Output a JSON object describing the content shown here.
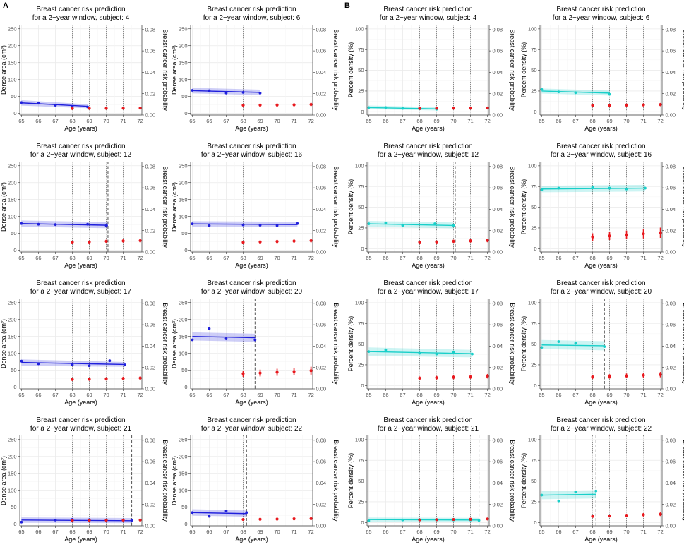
{
  "panel_letters": {
    "a": "A",
    "b": "B"
  },
  "chart_data": {
    "type": "small-multiples (line with confidence band + point-range)",
    "title_line1": "Breast cancer risk prediction",
    "title_line2_prefix": "for a 2−year window, subject: ",
    "xlabel": "Age (years)",
    "xticks": [
      65,
      66,
      67,
      68,
      69,
      70,
      71,
      72
    ],
    "xlim": [
      64.9,
      72.1
    ],
    "right_ylabel": "Breast cancer risk probability",
    "right_ylim": [
      0,
      0.0845
    ],
    "right_yticks": [
      0.0,
      0.02,
      0.04,
      0.06,
      0.08
    ],
    "right_tick_labels": [
      "0.00",
      "0.02",
      "0.04",
      "0.06",
      "0.08"
    ],
    "dotted_vlines": [
      68,
      69,
      70,
      71
    ],
    "colors": {
      "A": "#1f1fdc",
      "B": "#19cfc9",
      "risk": "#e8191e",
      "vline": "#6e6e6e"
    },
    "groups": {
      "A": {
        "ylabel": "Dense area (cm²)",
        "ylim": [
          -5,
          262
        ],
        "yticks": [
          0,
          50,
          100,
          150,
          200,
          250
        ]
      },
      "B": {
        "ylabel": "Percent density (%)",
        "ylim": [
          -4,
          105
        ],
        "yticks": [
          0,
          25,
          50,
          75,
          100
        ]
      }
    },
    "panels": [
      {
        "group": "A",
        "subject": "4",
        "obs": [
          [
            65,
            32
          ],
          [
            66,
            30
          ],
          [
            67,
            24
          ],
          [
            68,
            20
          ],
          [
            68.9,
            19
          ]
        ],
        "fit": [
          [
            65,
            31,
            23,
            39
          ],
          [
            68.9,
            21,
            15,
            27
          ]
        ],
        "dashed": null,
        "risk": [
          [
            68,
            0.0062,
            0.0012
          ],
          [
            69,
            0.0063,
            0.0012
          ],
          [
            70,
            0.0063,
            0.0012
          ],
          [
            71,
            0.0064,
            0.0012
          ],
          [
            72,
            0.0065,
            0.0013
          ]
        ]
      },
      {
        "group": "A",
        "subject": "6",
        "obs": [
          [
            65,
            68
          ],
          [
            66,
            67
          ],
          [
            67,
            60
          ],
          [
            68,
            62
          ],
          [
            69,
            60
          ]
        ],
        "fit": [
          [
            65,
            67,
            59,
            76
          ],
          [
            69,
            62,
            54,
            70
          ]
        ],
        "dashed": null,
        "risk": [
          [
            68,
            0.0092,
            0.0013
          ],
          [
            69,
            0.0093,
            0.0013
          ],
          [
            70,
            0.0094,
            0.0014
          ],
          [
            71,
            0.0096,
            0.0014
          ],
          [
            72,
            0.0099,
            0.0015
          ]
        ]
      },
      {
        "group": "A",
        "subject": "12",
        "obs": [
          [
            65,
            79
          ],
          [
            66,
            77
          ],
          [
            67,
            76
          ],
          [
            68.9,
            77
          ],
          [
            70,
            73
          ]
        ],
        "fit": [
          [
            65,
            79,
            70,
            88
          ],
          [
            70.1,
            74,
            65,
            83
          ]
        ],
        "dashed": 70.1,
        "risk": [
          [
            68,
            0.0092,
            0.0013
          ],
          [
            69,
            0.0093,
            0.0013
          ],
          [
            70,
            0.01,
            0.0014
          ],
          [
            71,
            0.0103,
            0.0015
          ],
          [
            72,
            0.0106,
            0.0016
          ]
        ]
      },
      {
        "group": "A",
        "subject": "16",
        "obs": [
          [
            65,
            78
          ],
          [
            66,
            73
          ],
          [
            68,
            75
          ],
          [
            69,
            74
          ],
          [
            70,
            73
          ],
          [
            71.2,
            79
          ]
        ],
        "fit": [
          [
            65,
            78,
            70,
            86
          ],
          [
            71.2,
            76,
            68,
            84
          ]
        ],
        "dashed": null,
        "risk": [
          [
            68,
            0.009,
            0.0014
          ],
          [
            69,
            0.0094,
            0.0014
          ],
          [
            70,
            0.0098,
            0.0015
          ],
          [
            71,
            0.0102,
            0.0016
          ],
          [
            72,
            0.0106,
            0.0017
          ]
        ]
      },
      {
        "group": "A",
        "subject": "17",
        "obs": [
          [
            65,
            77
          ],
          [
            66,
            69
          ],
          [
            68,
            66
          ],
          [
            69,
            63
          ],
          [
            70.2,
            78
          ],
          [
            71.1,
            66
          ]
        ],
        "fit": [
          [
            65,
            73,
            63,
            82
          ],
          [
            71.1,
            67,
            60,
            74
          ]
        ],
        "dashed": null,
        "risk": [
          [
            68,
            0.0088,
            0.0014
          ],
          [
            69,
            0.009,
            0.0015
          ],
          [
            70,
            0.0093,
            0.0015
          ],
          [
            71,
            0.0097,
            0.0016
          ],
          [
            72,
            0.0101,
            0.0017
          ]
        ]
      },
      {
        "group": "A",
        "subject": "20",
        "obs": [
          [
            65,
            140
          ],
          [
            66,
            173
          ],
          [
            67,
            143
          ],
          [
            68.7,
            140
          ]
        ],
        "fit": [
          [
            65,
            150,
            138,
            162
          ],
          [
            68.7,
            146,
            134,
            158
          ]
        ],
        "dashed": 68.7,
        "risk": [
          [
            68,
            0.0142,
            0.003
          ],
          [
            69,
            0.0148,
            0.0032
          ],
          [
            70,
            0.0155,
            0.0033
          ],
          [
            71,
            0.0162,
            0.0035
          ],
          [
            72,
            0.017,
            0.0037
          ]
        ]
      },
      {
        "group": "A",
        "subject": "21",
        "obs": [
          [
            65,
            6
          ],
          [
            67,
            12
          ],
          [
            68,
            14
          ],
          [
            69,
            13
          ],
          [
            70,
            12
          ],
          [
            71,
            12
          ],
          [
            71.5,
            11
          ]
        ],
        "fit": [
          [
            65,
            12,
            4,
            20
          ],
          [
            71.5,
            10,
            3,
            18
          ]
        ],
        "dashed": 71.5,
        "risk": [
          [
            68,
            0.005,
            0.001
          ],
          [
            69,
            0.0051,
            0.001
          ],
          [
            70,
            0.0052,
            0.0011
          ],
          [
            71,
            0.0053,
            0.0011
          ],
          [
            72,
            0.0054,
            0.0012
          ]
        ]
      },
      {
        "group": "A",
        "subject": "22",
        "obs": [
          [
            65,
            34
          ],
          [
            66,
            23
          ],
          [
            67,
            39
          ],
          [
            68.2,
            34
          ]
        ],
        "fit": [
          [
            65,
            34,
            25,
            44
          ],
          [
            68.2,
            31,
            22,
            40
          ]
        ],
        "dashed": 68.2,
        "risk": [
          [
            68,
            0.0059,
            0.001
          ],
          [
            69,
            0.0061,
            0.0011
          ],
          [
            70,
            0.0063,
            0.0011
          ],
          [
            71,
            0.0065,
            0.0012
          ],
          [
            72,
            0.0067,
            0.0012
          ]
        ]
      },
      {
        "group": "B",
        "subject": "4",
        "obs": [
          [
            65,
            5
          ],
          [
            66,
            5
          ],
          [
            67,
            4
          ],
          [
            68,
            3.5
          ],
          [
            69,
            3
          ]
        ],
        "fit": [
          [
            65,
            5,
            3,
            7.5
          ],
          [
            69,
            3.5,
            1.5,
            5.5
          ]
        ],
        "dashed": null,
        "risk": [
          [
            68,
            0.0062,
            0.0012
          ],
          [
            69,
            0.0063,
            0.0012
          ],
          [
            70,
            0.0064,
            0.0012
          ],
          [
            71,
            0.0065,
            0.0013
          ],
          [
            72,
            0.0066,
            0.0013
          ]
        ]
      },
      {
        "group": "B",
        "subject": "6",
        "obs": [
          [
            65,
            27
          ],
          [
            66,
            24
          ],
          [
            67,
            23
          ],
          [
            69,
            21
          ]
        ],
        "fit": [
          [
            65,
            25,
            22,
            28
          ],
          [
            69,
            22.5,
            19.5,
            25.5
          ]
        ],
        "dashed": null,
        "risk": [
          [
            68,
            0.009,
            0.0013
          ],
          [
            69,
            0.0091,
            0.0013
          ],
          [
            70,
            0.0093,
            0.0014
          ],
          [
            71,
            0.0095,
            0.0014
          ],
          [
            72,
            0.0098,
            0.0015
          ]
        ]
      },
      {
        "group": "B",
        "subject": "12",
        "obs": [
          [
            65,
            30
          ],
          [
            66,
            31
          ],
          [
            67,
            28
          ],
          [
            68.9,
            30
          ],
          [
            70,
            28
          ]
        ],
        "fit": [
          [
            65,
            30,
            26.5,
            33.5
          ],
          [
            70,
            28,
            24.5,
            31.5
          ]
        ],
        "dashed": 70.1,
        "risk": [
          [
            68,
            0.0092,
            0.0013
          ],
          [
            69,
            0.0094,
            0.0014
          ],
          [
            70,
            0.01,
            0.0015
          ],
          [
            71,
            0.0104,
            0.0016
          ],
          [
            72,
            0.0108,
            0.0017
          ]
        ]
      },
      {
        "group": "B",
        "subject": "16",
        "obs": [
          [
            65,
            71
          ],
          [
            66,
            73
          ],
          [
            68,
            74
          ],
          [
            69,
            73
          ],
          [
            70,
            72
          ],
          [
            71.1,
            73
          ]
        ],
        "fit": [
          [
            65,
            72,
            68,
            76
          ],
          [
            71.1,
            73,
            69,
            77
          ]
        ],
        "dashed": null,
        "risk": [
          [
            68,
            0.014,
            0.0035
          ],
          [
            69,
            0.015,
            0.0038
          ],
          [
            70,
            0.016,
            0.004
          ],
          [
            71,
            0.017,
            0.0043
          ],
          [
            72,
            0.018,
            0.0048
          ]
        ]
      },
      {
        "group": "B",
        "subject": "17",
        "obs": [
          [
            65,
            41
          ],
          [
            66,
            43
          ],
          [
            68,
            39
          ],
          [
            69,
            38
          ],
          [
            70,
            40
          ],
          [
            71.1,
            38
          ]
        ],
        "fit": [
          [
            65,
            41,
            36,
            46
          ],
          [
            71.1,
            38.5,
            34,
            43
          ]
        ],
        "dashed": null,
        "risk": [
          [
            68,
            0.01,
            0.0016
          ],
          [
            69,
            0.0104,
            0.0017
          ],
          [
            70,
            0.0108,
            0.0018
          ],
          [
            71,
            0.0112,
            0.0019
          ],
          [
            72,
            0.0118,
            0.0021
          ]
        ]
      },
      {
        "group": "B",
        "subject": "20",
        "obs": [
          [
            65,
            46
          ],
          [
            66,
            53
          ],
          [
            67,
            51
          ],
          [
            68.7,
            47
          ]
        ],
        "fit": [
          [
            65,
            49,
            44,
            55
          ],
          [
            68.7,
            48,
            42.5,
            53.5
          ]
        ],
        "dashed": 68.7,
        "risk": [
          [
            68,
            0.0112,
            0.002
          ],
          [
            69,
            0.0116,
            0.0021
          ],
          [
            70,
            0.0121,
            0.0022
          ],
          [
            71,
            0.0127,
            0.0023
          ],
          [
            72,
            0.0133,
            0.0025
          ]
        ]
      },
      {
        "group": "B",
        "subject": "21",
        "obs": [
          [
            65,
            2
          ],
          [
            67,
            3
          ],
          [
            68,
            3
          ],
          [
            69,
            3
          ],
          [
            70,
            3
          ],
          [
            71,
            3
          ],
          [
            71.5,
            2.5
          ]
        ],
        "fit": [
          [
            65,
            3.5,
            1,
            6
          ],
          [
            71.5,
            3,
            0.5,
            5.5
          ]
        ],
        "dashed": 71.5,
        "risk": [
          [
            68,
            0.0055,
            0.001
          ],
          [
            69,
            0.0057,
            0.0011
          ],
          [
            70,
            0.0059,
            0.0011
          ],
          [
            71,
            0.0061,
            0.0012
          ],
          [
            72,
            0.0064,
            0.0012
          ]
        ]
      },
      {
        "group": "B",
        "subject": "22",
        "obs": [
          [
            65,
            33
          ],
          [
            66,
            26
          ],
          [
            67,
            37
          ],
          [
            68.2,
            38
          ]
        ],
        "fit": [
          [
            65,
            33,
            28,
            38
          ],
          [
            68.2,
            34,
            29,
            39
          ]
        ],
        "dashed": 68.2,
        "risk": [
          [
            68,
            0.0088,
            0.0013
          ],
          [
            69,
            0.0092,
            0.0014
          ],
          [
            70,
            0.0097,
            0.0015
          ],
          [
            71,
            0.0103,
            0.0016
          ],
          [
            72,
            0.0108,
            0.0017
          ]
        ]
      }
    ]
  }
}
